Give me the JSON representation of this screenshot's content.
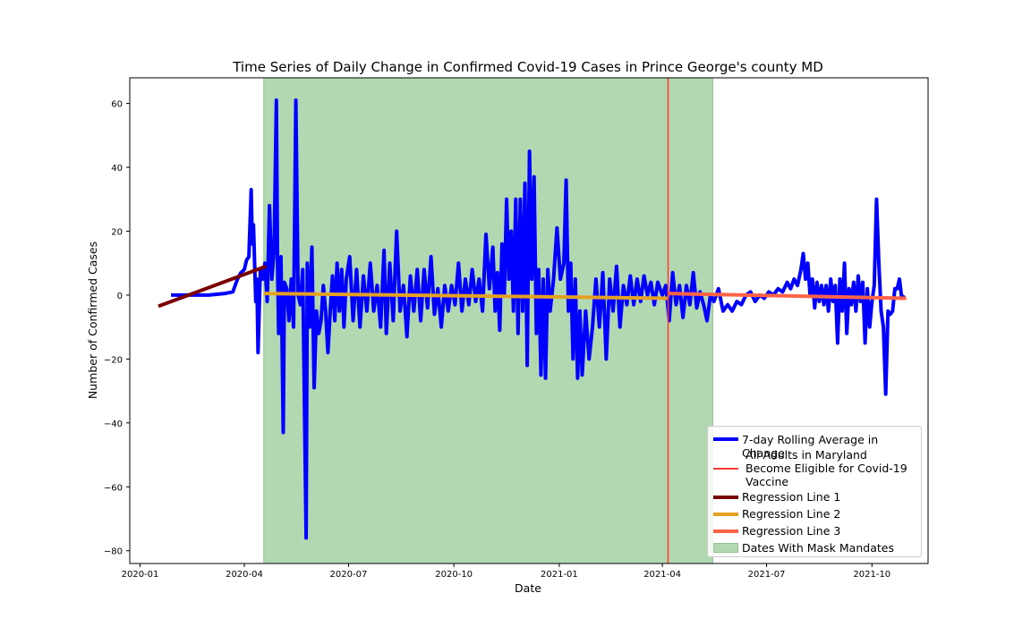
{
  "chart_data": {
    "type": "line",
    "title": "Time Series of Daily Change in Confirmed Covid-19 Cases in Prince George's county MD",
    "xlabel": "Date",
    "ylabel": "Number of Confirmed Cases",
    "x_axis_type": "date",
    "xlim": [
      "2019-12-23",
      "2021-11-19"
    ],
    "ylim": [
      -84,
      68
    ],
    "x_ticks": [
      "2020-01",
      "2020-04",
      "2020-07",
      "2020-10",
      "2021-01",
      "2021-04",
      "2021-07",
      "2021-10"
    ],
    "y_ticks": [
      -80,
      -60,
      -40,
      -20,
      0,
      20,
      40,
      60
    ],
    "grid": false,
    "legend_position": "lower-right",
    "shaded_regions": [
      {
        "name": "Dates With Mask Mandates",
        "start": "2020-04-18",
        "end": "2021-05-15",
        "color": "#b2d8b2"
      }
    ],
    "vertical_lines": [
      {
        "name": "All Adults in Maryland Become Eligible for Covid-19 Vaccine",
        "x": "2021-04-06",
        "color": "#ff3b30"
      }
    ],
    "series": [
      {
        "name": "7-day Rolling Average in Change",
        "color": "#0000ff",
        "points": [
          [
            "2020-01-28",
            0
          ],
          [
            "2020-02-15",
            0
          ],
          [
            "2020-03-01",
            0
          ],
          [
            "2020-03-15",
            0.5
          ],
          [
            "2020-03-22",
            1
          ],
          [
            "2020-03-26",
            5
          ],
          [
            "2020-03-29",
            7
          ],
          [
            "2020-04-01",
            8
          ],
          [
            "2020-04-03",
            11
          ],
          [
            "2020-04-05",
            12
          ],
          [
            "2020-04-07",
            33
          ],
          [
            "2020-04-08",
            16
          ],
          [
            "2020-04-09",
            22
          ],
          [
            "2020-04-10",
            10
          ],
          [
            "2020-04-11",
            -2
          ],
          [
            "2020-04-12",
            5
          ],
          [
            "2020-04-13",
            -18
          ],
          [
            "2020-04-15",
            8
          ],
          [
            "2020-04-17",
            5
          ],
          [
            "2020-04-19",
            10
          ],
          [
            "2020-04-21",
            -2
          ],
          [
            "2020-04-23",
            28
          ],
          [
            "2020-04-25",
            5
          ],
          [
            "2020-04-27",
            14
          ],
          [
            "2020-04-29",
            61
          ],
          [
            "2020-04-30",
            10
          ],
          [
            "2020-05-01",
            -12
          ],
          [
            "2020-05-03",
            12
          ],
          [
            "2020-05-05",
            -43
          ],
          [
            "2020-05-06",
            4
          ],
          [
            "2020-05-08",
            2
          ],
          [
            "2020-05-10",
            -8
          ],
          [
            "2020-05-12",
            5
          ],
          [
            "2020-05-14",
            -10
          ],
          [
            "2020-05-16",
            61
          ],
          [
            "2020-05-18",
            0
          ],
          [
            "2020-05-20",
            -3
          ],
          [
            "2020-05-22",
            8
          ],
          [
            "2020-05-23",
            -20
          ],
          [
            "2020-05-25",
            -76
          ],
          [
            "2020-05-26",
            10
          ],
          [
            "2020-05-28",
            -10
          ],
          [
            "2020-05-30",
            15
          ],
          [
            "2020-06-01",
            -29
          ],
          [
            "2020-06-03",
            -5
          ],
          [
            "2020-06-05",
            -12
          ],
          [
            "2020-06-07",
            -8
          ],
          [
            "2020-06-09",
            3
          ],
          [
            "2020-06-11",
            -5
          ],
          [
            "2020-06-13",
            -18
          ],
          [
            "2020-06-15",
            -5
          ],
          [
            "2020-06-17",
            6
          ],
          [
            "2020-06-19",
            -8
          ],
          [
            "2020-06-21",
            10
          ],
          [
            "2020-06-23",
            -5
          ],
          [
            "2020-06-25",
            8
          ],
          [
            "2020-06-27",
            -10
          ],
          [
            "2020-06-29",
            5
          ],
          [
            "2020-07-02",
            12
          ],
          [
            "2020-07-05",
            -8
          ],
          [
            "2020-07-08",
            8
          ],
          [
            "2020-07-11",
            -10
          ],
          [
            "2020-07-14",
            6
          ],
          [
            "2020-07-17",
            -5
          ],
          [
            "2020-07-20",
            10
          ],
          [
            "2020-07-23",
            -5
          ],
          [
            "2020-07-26",
            3
          ],
          [
            "2020-07-29",
            -10
          ],
          [
            "2020-08-01",
            14
          ],
          [
            "2020-08-03",
            -12
          ],
          [
            "2020-08-06",
            10
          ],
          [
            "2020-08-09",
            -8
          ],
          [
            "2020-08-12",
            20
          ],
          [
            "2020-08-15",
            -5
          ],
          [
            "2020-08-18",
            3
          ],
          [
            "2020-08-21",
            -13
          ],
          [
            "2020-08-24",
            6
          ],
          [
            "2020-08-27",
            -5
          ],
          [
            "2020-08-30",
            8
          ],
          [
            "2020-09-02",
            -8
          ],
          [
            "2020-09-05",
            8
          ],
          [
            "2020-09-08",
            -4
          ],
          [
            "2020-09-11",
            12
          ],
          [
            "2020-09-14",
            -6
          ],
          [
            "2020-09-17",
            2
          ],
          [
            "2020-09-20",
            -10
          ],
          [
            "2020-09-23",
            3
          ],
          [
            "2020-09-26",
            -5
          ],
          [
            "2020-09-29",
            3
          ],
          [
            "2020-10-02",
            -3
          ],
          [
            "2020-10-05",
            10
          ],
          [
            "2020-10-08",
            -5
          ],
          [
            "2020-10-11",
            5
          ],
          [
            "2020-10-14",
            -3
          ],
          [
            "2020-10-17",
            8
          ],
          [
            "2020-10-20",
            -2
          ],
          [
            "2020-10-23",
            5
          ],
          [
            "2020-10-26",
            -5
          ],
          [
            "2020-10-29",
            19
          ],
          [
            "2020-11-01",
            2
          ],
          [
            "2020-11-04",
            15
          ],
          [
            "2020-11-06",
            -5
          ],
          [
            "2020-11-08",
            7
          ],
          [
            "2020-11-10",
            -11
          ],
          [
            "2020-11-12",
            16
          ],
          [
            "2020-11-14",
            0
          ],
          [
            "2020-11-16",
            30
          ],
          [
            "2020-11-18",
            5
          ],
          [
            "2020-11-20",
            20
          ],
          [
            "2020-11-22",
            -5
          ],
          [
            "2020-11-24",
            30
          ],
          [
            "2020-11-26",
            -12
          ],
          [
            "2020-11-28",
            30
          ],
          [
            "2020-11-30",
            -5
          ],
          [
            "2020-12-02",
            35
          ],
          [
            "2020-12-04",
            -22
          ],
          [
            "2020-12-06",
            45
          ],
          [
            "2020-12-08",
            5
          ],
          [
            "2020-12-10",
            37
          ],
          [
            "2020-12-12",
            -12
          ],
          [
            "2020-12-14",
            8
          ],
          [
            "2020-12-16",
            -25
          ],
          [
            "2020-12-18",
            5
          ],
          [
            "2020-12-20",
            -26
          ],
          [
            "2020-12-22",
            8
          ],
          [
            "2020-12-24",
            -5
          ],
          [
            "2020-12-27",
            5
          ],
          [
            "2020-12-30",
            21
          ],
          [
            "2021-01-02",
            5
          ],
          [
            "2021-01-05",
            10
          ],
          [
            "2021-01-07",
            36
          ],
          [
            "2021-01-09",
            -5
          ],
          [
            "2021-01-11",
            10
          ],
          [
            "2021-01-13",
            -20
          ],
          [
            "2021-01-15",
            5
          ],
          [
            "2021-01-17",
            -26
          ],
          [
            "2021-01-19",
            -5
          ],
          [
            "2021-01-21",
            -25
          ],
          [
            "2021-01-24",
            -5
          ],
          [
            "2021-01-27",
            -20
          ],
          [
            "2021-01-30",
            -10
          ],
          [
            "2021-02-02",
            5
          ],
          [
            "2021-02-05",
            -10
          ],
          [
            "2021-02-08",
            7
          ],
          [
            "2021-02-11",
            -20
          ],
          [
            "2021-02-14",
            5
          ],
          [
            "2021-02-17",
            -5
          ],
          [
            "2021-02-20",
            9
          ],
          [
            "2021-02-23",
            -10
          ],
          [
            "2021-02-26",
            3
          ],
          [
            "2021-03-01",
            -3
          ],
          [
            "2021-03-04",
            6
          ],
          [
            "2021-03-07",
            -3
          ],
          [
            "2021-03-10",
            5
          ],
          [
            "2021-03-13",
            -2
          ],
          [
            "2021-03-16",
            6
          ],
          [
            "2021-03-19",
            0
          ],
          [
            "2021-03-22",
            4
          ],
          [
            "2021-03-25",
            -3
          ],
          [
            "2021-03-28",
            4
          ],
          [
            "2021-04-01",
            0
          ],
          [
            "2021-04-04",
            3
          ],
          [
            "2021-04-07",
            -8
          ],
          [
            "2021-04-10",
            7
          ],
          [
            "2021-04-13",
            -3
          ],
          [
            "2021-04-16",
            3
          ],
          [
            "2021-04-19",
            -7
          ],
          [
            "2021-04-22",
            3
          ],
          [
            "2021-04-25",
            -3
          ],
          [
            "2021-04-28",
            7
          ],
          [
            "2021-05-01",
            -4
          ],
          [
            "2021-05-04",
            1
          ],
          [
            "2021-05-07",
            -3
          ],
          [
            "2021-05-10",
            -8
          ],
          [
            "2021-05-13",
            0
          ],
          [
            "2021-05-16",
            -2
          ],
          [
            "2021-05-20",
            2
          ],
          [
            "2021-05-24",
            -5
          ],
          [
            "2021-05-28",
            -3
          ],
          [
            "2021-06-01",
            -5
          ],
          [
            "2021-06-05",
            -2
          ],
          [
            "2021-06-09",
            -3
          ],
          [
            "2021-06-13",
            0
          ],
          [
            "2021-06-17",
            1
          ],
          [
            "2021-06-21",
            -2
          ],
          [
            "2021-06-25",
            0
          ],
          [
            "2021-06-29",
            -1
          ],
          [
            "2021-07-03",
            1
          ],
          [
            "2021-07-07",
            0
          ],
          [
            "2021-07-11",
            2
          ],
          [
            "2021-07-15",
            1
          ],
          [
            "2021-07-19",
            4
          ],
          [
            "2021-07-22",
            2
          ],
          [
            "2021-07-25",
            5
          ],
          [
            "2021-07-28",
            3
          ],
          [
            "2021-07-31",
            8
          ],
          [
            "2021-08-02",
            13
          ],
          [
            "2021-08-04",
            5
          ],
          [
            "2021-08-06",
            10
          ],
          [
            "2021-08-08",
            0
          ],
          [
            "2021-08-10",
            5
          ],
          [
            "2021-08-12",
            -4
          ],
          [
            "2021-08-14",
            4
          ],
          [
            "2021-08-16",
            -2
          ],
          [
            "2021-08-18",
            3
          ],
          [
            "2021-08-20",
            -3
          ],
          [
            "2021-08-22",
            3
          ],
          [
            "2021-08-24",
            -5
          ],
          [
            "2021-08-26",
            5
          ],
          [
            "2021-08-28",
            -2
          ],
          [
            "2021-08-30",
            3
          ],
          [
            "2021-09-01",
            -15
          ],
          [
            "2021-09-03",
            5
          ],
          [
            "2021-09-05",
            -5
          ],
          [
            "2021-09-07",
            10
          ],
          [
            "2021-09-09",
            -12
          ],
          [
            "2021-09-11",
            2
          ],
          [
            "2021-09-13",
            -3
          ],
          [
            "2021-09-15",
            4
          ],
          [
            "2021-09-17",
            -5
          ],
          [
            "2021-09-19",
            6
          ],
          [
            "2021-09-21",
            -2
          ],
          [
            "2021-09-23",
            4
          ],
          [
            "2021-09-25",
            -15
          ],
          [
            "2021-09-27",
            2
          ],
          [
            "2021-09-29",
            -10
          ],
          [
            "2021-10-01",
            -2
          ],
          [
            "2021-10-03",
            3
          ],
          [
            "2021-10-05",
            30
          ],
          [
            "2021-10-07",
            10
          ],
          [
            "2021-10-09",
            -5
          ],
          [
            "2021-10-11",
            -10
          ],
          [
            "2021-10-13",
            -31
          ],
          [
            "2021-10-15",
            -5
          ],
          [
            "2021-10-17",
            -6
          ],
          [
            "2021-10-19",
            -5
          ],
          [
            "2021-10-21",
            2
          ],
          [
            "2021-10-23",
            2
          ],
          [
            "2021-10-25",
            5
          ],
          [
            "2021-10-27",
            -1
          ],
          [
            "2021-10-29",
            0
          ]
        ]
      },
      {
        "name": "Regression Line 1",
        "color": "#7a0000",
        "points": [
          [
            "2020-01-17",
            -3.5
          ],
          [
            "2020-04-20",
            9
          ]
        ]
      },
      {
        "name": "Regression Line 2",
        "color": "#e5a024",
        "points": [
          [
            "2020-04-18",
            0.5
          ],
          [
            "2021-04-06",
            -1
          ]
        ]
      },
      {
        "name": "Regression Line 3",
        "color": "#ff6347",
        "points": [
          [
            "2021-04-06",
            0.5
          ],
          [
            "2021-10-31",
            -1
          ]
        ]
      }
    ]
  },
  "legend": {
    "items": [
      {
        "label": "7-day Rolling Average in Change",
        "color": "#0000ff",
        "kind": "line-thick"
      },
      {
        "label": "All Adults in Maryland\nBecome Eligible for Covid-19\nVaccine",
        "color": "#ff3b30",
        "kind": "line-thin"
      },
      {
        "label": "Regression Line 1",
        "color": "#7a0000",
        "kind": "line-thick"
      },
      {
        "label": "Regression Line 2",
        "color": "#e5a024",
        "kind": "line-thick"
      },
      {
        "label": "Regression Line 3",
        "color": "#ff6347",
        "kind": "line-thick"
      },
      {
        "label": "Dates With Mask Mandates",
        "color": "#b2d8b2",
        "kind": "patch"
      }
    ]
  }
}
